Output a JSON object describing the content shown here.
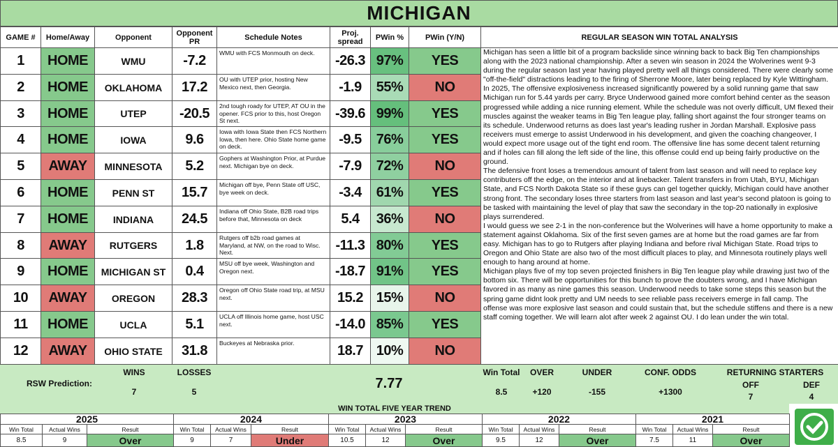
{
  "title": "MICHIGAN",
  "columns": [
    "GAME #",
    "Home/Away",
    "Opponent",
    "Opponent PR",
    "Schedule Notes",
    "Proj. spread",
    "PWin %",
    "PWin (Y/N)",
    "REGULAR SEASON WIN TOTAL ANALYSIS"
  ],
  "cell_colors": {
    "HOME": "#86c98c",
    "AWAY": "#e07b77",
    "YES": "#86c98c",
    "NO": "#e07b77",
    "Over": "#86c98c",
    "Under": "#e07b77"
  },
  "games": [
    {
      "game": "1",
      "location": "HOME",
      "opponent": "WMU",
      "opponent_pr": "-7.2",
      "notes": "WMU with FCS Monmouth on deck.",
      "spread": "-26.3",
      "pwin_pct": "97%",
      "pwin_yn": "YES"
    },
    {
      "game": "2",
      "location": "HOME",
      "opponent": "OKLAHOMA",
      "opponent_pr": "17.2",
      "notes": "OU with UTEP prior, hosting New Mexico next, then Georgia.",
      "spread": "-1.9",
      "pwin_pct": "55%",
      "pwin_yn": "NO"
    },
    {
      "game": "3",
      "location": "HOME",
      "opponent": "UTEP",
      "opponent_pr": "-20.5",
      "notes": "2nd tough roady for UTEP, AT OU in the opener. FCS prior to this, host Oregon St next.",
      "spread": "-39.6",
      "pwin_pct": "99%",
      "pwin_yn": "YES"
    },
    {
      "game": "4",
      "location": "HOME",
      "opponent": "IOWA",
      "opponent_pr": "9.6",
      "notes": "Iowa with Iowa State then FCS Northern Iowa, then here. Ohio State home game on deck.",
      "spread": "-9.5",
      "pwin_pct": "76%",
      "pwin_yn": "YES"
    },
    {
      "game": "5",
      "location": "AWAY",
      "opponent": "MINNESOTA",
      "opponent_pr": "5.2",
      "notes": "Gophers at Washington Prior, at Purdue next. Michigan bye on deck.",
      "spread": "-7.9",
      "pwin_pct": "72%",
      "pwin_yn": "NO"
    },
    {
      "game": "6",
      "location": "HOME",
      "opponent": "PENN ST",
      "opponent_pr": "15.7",
      "notes": "Michigan off bye, Penn State off USC, bye week on deck.",
      "spread": "-3.4",
      "pwin_pct": "61%",
      "pwin_yn": "YES"
    },
    {
      "game": "7",
      "location": "HOME",
      "opponent": "INDIANA",
      "opponent_pr": "24.5",
      "notes": "Indiana off Ohio State, B2B road trips before that, Minnesota on deck",
      "spread": "5.4",
      "pwin_pct": "36%",
      "pwin_yn": "NO"
    },
    {
      "game": "8",
      "location": "AWAY",
      "opponent": "RUTGERS",
      "opponent_pr": "1.8",
      "notes": "Rutgers off b2b road games at Maryland, at NW, on the road to Wisc. Next.",
      "spread": "-11.3",
      "pwin_pct": "80%",
      "pwin_yn": "YES"
    },
    {
      "game": "9",
      "location": "HOME",
      "opponent": "MICHIGAN ST",
      "opponent_pr": "0.4",
      "notes": "MSU off bye week, Washington and Oregon next.",
      "spread": "-18.7",
      "pwin_pct": "91%",
      "pwin_yn": "YES"
    },
    {
      "game": "10",
      "location": "AWAY",
      "opponent": "OREGON",
      "opponent_pr": "28.3",
      "notes": "Oregon off Ohio State road trip, at MSU next.",
      "spread": "15.2",
      "pwin_pct": "15%",
      "pwin_yn": "NO"
    },
    {
      "game": "11",
      "location": "HOME",
      "opponent": "UCLA",
      "opponent_pr": "5.1",
      "notes": "UCLA off Illinois home game, host USC next.",
      "spread": "-14.0",
      "pwin_pct": "85%",
      "pwin_yn": "YES"
    },
    {
      "game": "12",
      "location": "AWAY",
      "opponent": "OHIO STATE",
      "opponent_pr": "31.8",
      "notes": "Buckeyes at Nebraska prior.",
      "spread": "18.7",
      "pwin_pct": "10%",
      "pwin_yn": "NO"
    }
  ],
  "analysis": [
    "Michigan has seen a little bit of a program backslide since winning back to back Big Ten championships along with the 2023 national championship. After a seven win season in 2024 the Wolverines went 9-3 during the regular season last year having played pretty well all things considered. There were clearly some \"off-the-field\" distractions leading to the firing of Sherrone Moore, later being replaced by Kyle Wittingham.",
    "In 2025, The offensive explosiveness increased significantly powered by a solid running game that saw Michigan run for 5.44 yards per carry. Bryce Underwood gained more comfort behind center as the season progressed while adding a nice running element. While the schedule was not overly difficult, UM flexed their muscles against the weaker teams in Big Ten league play, falling short against the four stronger teams on its schedule. Underwood returns as does last year's leading rusher in Jordan Marshall. Explosive pass receivers must emerge to assist Underwood in his development, and given the coaching changeover, I would expect more usage out of the tight end room. The offensive line has some decent talent returning and if holes can fill along the left side of the line, this offense could end up being fairly productive on the ground.",
    "The defensive front loses a tremendous amount of talent from last season and will need to replace key contributers off the edge, on the interior and at linebacker. Talent transfers in from Utah, BYU, Michigan State, and FCS North Dakota State so if these guys can gel together quickly, Michigan could have another strong front. The secondary loses three starters from last season and last year's second platoon is going to be tasked with maintaining the level of play that saw the secondary in the top-20 nationally in explosive plays surrendered.",
    "I would guess we see 2-1 in the non-conference but the Wolverines will have a home opportunity to make a statement against Oklahoma. Six of the first seven games are at home but the road games are far from easy. Michigan has to go to Rutgers after playing Indiana and before rival Michigan State. Road trips to Oregon and Ohio State are also two of the most difficult places to play, and Minnesota routinely plays well enough to hang around at home.",
    "Michigan plays five of my top seven projected finishers in Big Ten league play while drawing just two of the bottom six. There will be opportunities for this bunch to prove the doubters wrong, and I have Michigan favored in as many as nine games this season. Underwood needs to take some steps this season but the spring game didnt look pretty and UM needs to see reliable pass receivers emerge in fall camp. The offense was more explosive last season and could sustain that, but the schedule stiffens and there is a new staff coming together. We will learn alot after week 2 against OU. I do lean under the win total."
  ],
  "prediction": {
    "label": "RSW Prediction:",
    "wins_label": "WINS",
    "wins": "7",
    "losses_label": "LOSSES",
    "losses": "5",
    "expected": "7.77",
    "win_total_label": "Win Total",
    "win_total": "8.5",
    "over_label": "OVER",
    "over": "+120",
    "under_label": "UNDER",
    "under": "-155",
    "conf_label": "CONF. ODDS",
    "conf": "+1300",
    "returning_label": "RETURNING STARTERS",
    "off_label": "OFF",
    "off": "7",
    "def_label": "DEF",
    "def": "4"
  },
  "trend": {
    "title": "WIN TOTAL FIVE YEAR TREND",
    "subheaders": [
      "Win Total",
      "Actual Wins",
      "Result"
    ],
    "years": [
      {
        "year": "2025",
        "win_total": "8.5",
        "actual": "9",
        "result": "Over"
      },
      {
        "year": "2024",
        "win_total": "9",
        "actual": "7",
        "result": "Under"
      },
      {
        "year": "2023",
        "win_total": "10.5",
        "actual": "12",
        "result": "Over"
      },
      {
        "year": "2022",
        "win_total": "9.5",
        "actual": "12",
        "result": "Over"
      },
      {
        "year": "2021",
        "win_total": "7.5",
        "actual": "11",
        "result": "Over"
      }
    ]
  }
}
